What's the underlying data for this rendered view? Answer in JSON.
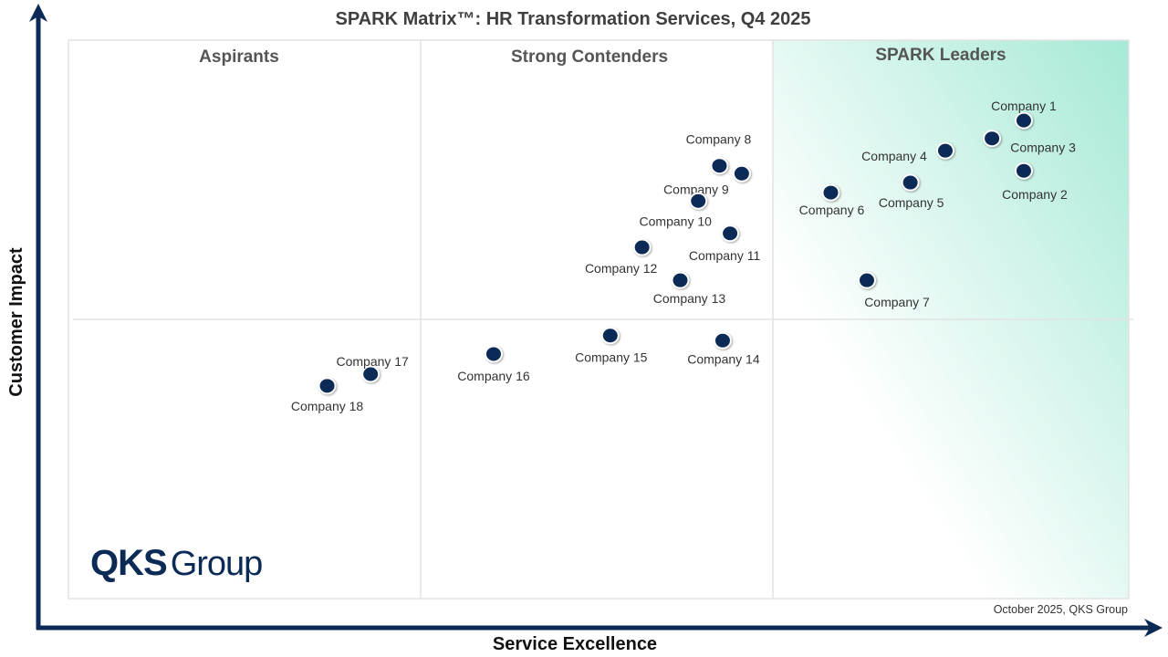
{
  "chart_data": {
    "type": "scatter",
    "title": "SPARK Matrix™: HR Transformation Services, Q4 2025",
    "xlabel": "Service Excellence",
    "ylabel": "Customer Impact",
    "xlim": [
      0,
      100
    ],
    "ylim": [
      0,
      100
    ],
    "grid": false,
    "quadrants": [
      "Aspirants",
      "Strong Contenders",
      "SPARK Leaders"
    ],
    "points": [
      {
        "label": "Company 1",
        "x": 90.1,
        "y": 85.6
      },
      {
        "label": "Company 2",
        "x": 90.1,
        "y": 76.6
      },
      {
        "label": "Company 3",
        "x": 87.1,
        "y": 82.4
      },
      {
        "label": "Company 4",
        "x": 82.7,
        "y": 80.2
      },
      {
        "label": "Company 5",
        "x": 79.4,
        "y": 74.5
      },
      {
        "label": "Company 6",
        "x": 71.9,
        "y": 72.7
      },
      {
        "label": "Company 7",
        "x": 75.3,
        "y": 57.0
      },
      {
        "label": "Company 8",
        "x": 61.4,
        "y": 77.5
      },
      {
        "label": "Company 9",
        "x": 63.5,
        "y": 76.1
      },
      {
        "label": "Company 10",
        "x": 59.4,
        "y": 71.2
      },
      {
        "label": "Company 11",
        "x": 62.4,
        "y": 65.4
      },
      {
        "label": "Company 12",
        "x": 54.1,
        "y": 62.9
      },
      {
        "label": "Company 13",
        "x": 57.7,
        "y": 57.0
      },
      {
        "label": "Company 14",
        "x": 61.7,
        "y": 46.2
      },
      {
        "label": "Company 15",
        "x": 51.1,
        "y": 47.1
      },
      {
        "label": "Company 16",
        "x": 40.1,
        "y": 43.8
      },
      {
        "label": "Company 17",
        "x": 28.5,
        "y": 40.2
      },
      {
        "label": "Company 18",
        "x": 24.4,
        "y": 38.1
      }
    ],
    "colors": {
      "point": "#0b2a55",
      "axis": "#0b2a55",
      "leaders_gradient": "#a6e9d6"
    }
  },
  "logo": {
    "brand_bold": "QKS",
    "brand_light": "Group"
  },
  "footnote": "October 2025, QKS Group"
}
